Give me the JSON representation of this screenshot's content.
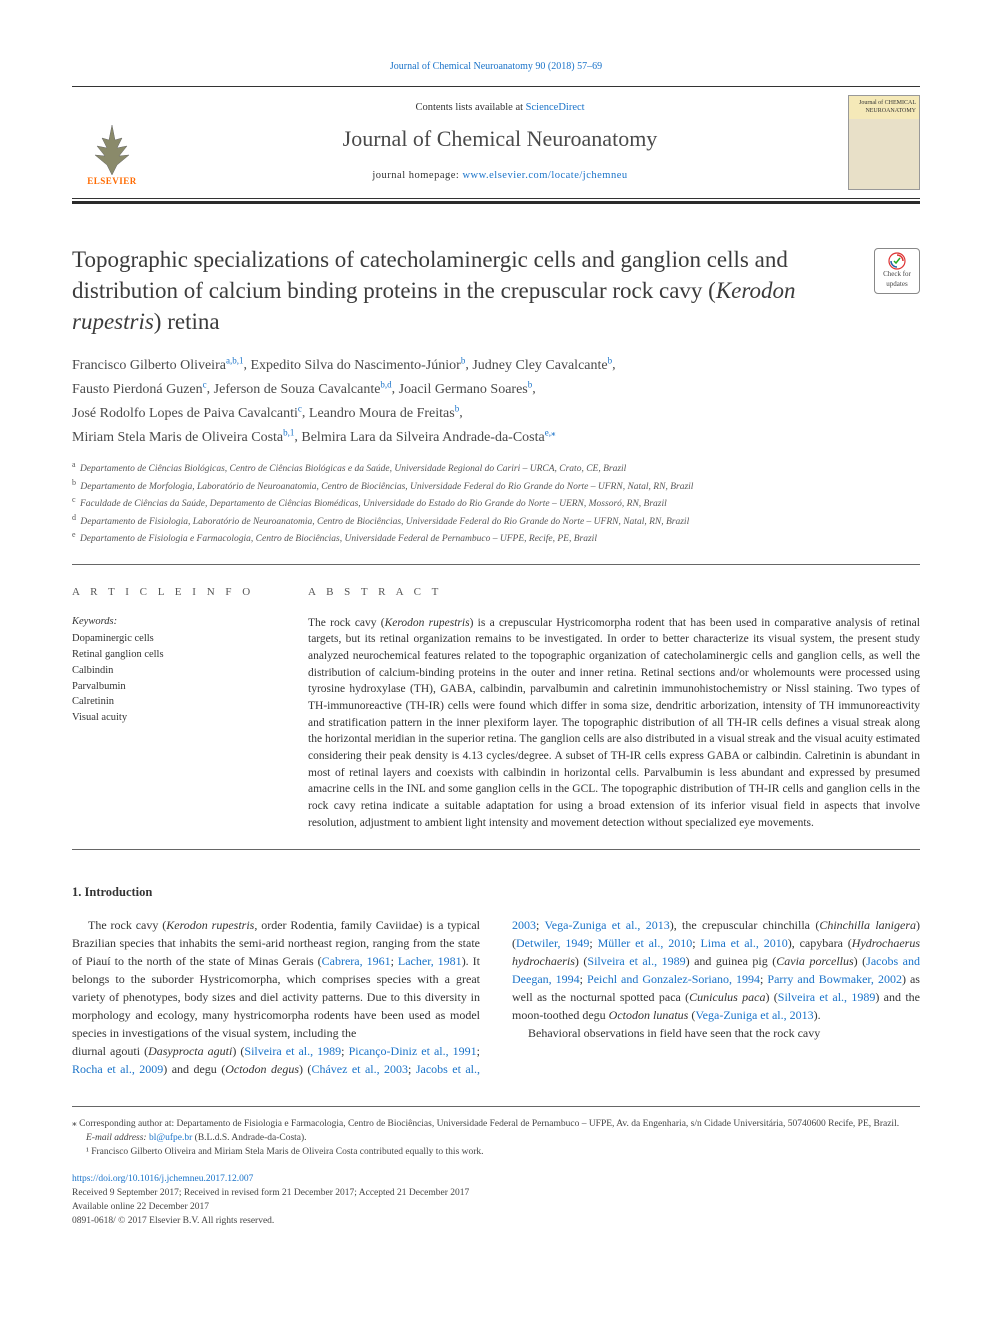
{
  "top_link": {
    "text": "Journal of Chemical Neuroanatomy 90 (2018) 57–69"
  },
  "header": {
    "publisher_logo_label": "ELSEVIER",
    "contents_prefix": "Contents lists available at ",
    "contents_link": "ScienceDirect",
    "journal_name": "Journal of Chemical Neuroanatomy",
    "homepage_prefix": "journal homepage: ",
    "homepage_link": "www.elsevier.com/locate/jchemneu",
    "cover_title": "Journal of CHEMICAL NEUROANATOMY"
  },
  "check_badge": {
    "top": "Check for",
    "bottom": "updates"
  },
  "title": "Topographic specializations of catecholaminergic cells and ganglion cells and distribution of calcium binding proteins in the crepuscular rock cavy (Kerodon rupestris) retina",
  "authors": [
    {
      "name": "Francisco Gilberto Oliveira",
      "sup": "a,b,1"
    },
    {
      "name": "Expedito Silva do Nascimento-Júnior",
      "sup": "b"
    },
    {
      "name": "Judney Cley Cavalcante",
      "sup": "b"
    },
    {
      "name": "Fausto Pierdoná Guzen",
      "sup": "c"
    },
    {
      "name": "Jeferson de Souza Cavalcante",
      "sup": "b,d"
    },
    {
      "name": "Joacil Germano Soares",
      "sup": "b"
    },
    {
      "name": "José Rodolfo Lopes de Paiva Cavalcanti",
      "sup": "c"
    },
    {
      "name": "Leandro Moura de Freitas",
      "sup": "b"
    },
    {
      "name": "Miriam Stela Maris de Oliveira Costa",
      "sup": "b,1"
    },
    {
      "name": "Belmira Lara da Silveira Andrade-da-Costa",
      "sup": "e,⁎"
    }
  ],
  "affiliations": [
    {
      "key": "a",
      "text": "Departamento de Ciências Biológicas, Centro de Ciências Biológicas e da Saúde, Universidade Regional do Cariri – URCA, Crato, CE, Brazil"
    },
    {
      "key": "b",
      "text": "Departamento de Morfologia, Laboratório de Neuroanatomia, Centro de Biociências, Universidade Federal do Rio Grande do Norte – UFRN, Natal, RN, Brazil"
    },
    {
      "key": "c",
      "text": "Faculdade de Ciências da Saúde, Departamento de Ciências Biomédicas, Universidade do Estado do Rio Grande do Norte – UERN, Mossoró, RN, Brazil"
    },
    {
      "key": "d",
      "text": "Departamento de Fisiologia, Laboratório de Neuroanatomia, Centro de Biociências, Universidade Federal do Rio Grande do Norte – UFRN, Natal, RN, Brazil"
    },
    {
      "key": "e",
      "text": "Departamento de Fisiologia e Farmacologia, Centro de Biociências, Universidade Federal de Pernambuco – UFPE, Recife, PE, Brazil"
    }
  ],
  "article_info": {
    "heading": "A R T I C L E  I N F O",
    "keywords_label": "Keywords:",
    "keywords": [
      "Dopaminergic cells",
      "Retinal ganglion cells",
      "Calbindin",
      "Parvalbumin",
      "Calretinin",
      "Visual acuity"
    ]
  },
  "abstract": {
    "heading": "A B S T R A C T",
    "text": "The rock cavy (Kerodon rupestris) is a crepuscular Hystricomorpha rodent that has been used in comparative analysis of retinal targets, but its retinal organization remains to be investigated. In order to better characterize its visual system, the present study analyzed neurochemical features related to the topographic organization of catecholaminergic cells and ganglion cells, as well the distribution of calcium-binding proteins in the outer and inner retina. Retinal sections and/or wholemounts were processed using tyrosine hydroxylase (TH), GABA, calbindin, parvalbumin and calretinin immunohistochemistry or Nissl staining. Two types of TH-immunoreactive (TH-IR) cells were found which differ in soma size, dendritic arborization, intensity of TH immunoreactivity and stratification pattern in the inner plexiform layer. The topographic distribution of all TH-IR cells defines a visual streak along the horizontal meridian in the superior retina. The ganglion cells are also distributed in a visual streak and the visual acuity estimated considering their peak density is 4.13 cycles/degree. A subset of TH-IR cells express GABA or calbindin. Calretinin is abundant in most of retinal layers and coexists with calbindin in horizontal cells. Parvalbumin is less abundant and expressed by presumed amacrine cells in the INL and some ganglion cells in the GCL. The topographic distribution of TH-IR cells and ganglion cells in the rock cavy retina indicate a suitable adaptation for using a broad extension of its inferior visual field in aspects that involve resolution, adjustment to ambient light intensity and movement detection without specialized eye movements."
  },
  "intro": {
    "heading": "1. Introduction",
    "para1_html": "The rock cavy (<em>Kerodon rupestris</em>, order Rodentia, family Caviidae) is a typical Brazilian species that inhabits the semi-arid northeast region, ranging from the state of Piauí to the north of the state of Minas Gerais (<a>Cabrera, 1961</a>; <a>Lacher, 1981</a>). It belongs to the suborder Hystricomorpha, which comprises species with a great variety of phenotypes, body sizes and diel activity patterns. Due to this diversity in morphology and ecology, many hystricomorpha rodents have been used as model species in investigations of the visual system, including the",
    "para2_html": "diurnal agouti (<em>Dasyprocta aguti</em>) (<a>Silveira et al., 1989</a>; <a>Picanço-Diniz et al., 1991</a>; <a>Rocha et al., 2009</a>) and degu (<em>Octodon degus</em>) (<a>Chávez et al., 2003</a>; <a>Jacobs et al., 2003</a>; <a>Vega-Zuniga et al., 2013</a>), the crepuscular chinchilla (<em>Chinchilla lanigera</em>) (<a>Detwiler, 1949</a>; <a>Müller et al., 2010</a>; <a>Lima et al., 2010</a>), capybara (<em>Hydrochaerus hydrochaeris</em>) (<a>Silveira et al., 1989</a>) and guinea pig (<em>Cavia porcellus</em>) (<a>Jacobs and Deegan, 1994</a>; <a>Peichl and Gonzalez-Soriano, 1994</a>; <a>Parry and Bowmaker, 2002</a>) as well as the nocturnal spotted paca (<em>Cuniculus paca</em>) (<a>Silveira et al., 1989</a>) and the moon-toothed degu <em>Octodon lunatus</em> (<a>Vega-Zuniga et al., 2013</a>).",
    "para3": "Behavioral observations in field have seen that the rock cavy"
  },
  "footnotes": {
    "corr": "⁎ Corresponding author at: Departamento de Fisiologia e Farmacologia, Centro de Biociências, Universidade Federal de Pernambuco – UFPE, Av. da Engenharia, s/n Cidade Universitária, 50740600 Recife, PE, Brazil.",
    "email_label": "E-mail address: ",
    "email": "bl@ufpe.br",
    "email_suffix": " (B.L.d.S. Andrade-da-Costa).",
    "note1": "¹ Francisco Gilberto Oliveira and Miriam Stela Maris de Oliveira Costa contributed equally to this work.",
    "doi": "https://doi.org/10.1016/j.jchemneu.2017.12.007",
    "received": "Received 9 September 2017; Received in revised form 21 December 2017; Accepted 21 December 2017",
    "available": "Available online 22 December 2017",
    "copyright": "0891-0618/ © 2017 Elsevier B.V. All rights reserved."
  },
  "colors": {
    "link": "#1a73c9",
    "text": "#333333",
    "elsevier_orange": "#ff6a00",
    "rule_dark": "#2a2a2a"
  }
}
